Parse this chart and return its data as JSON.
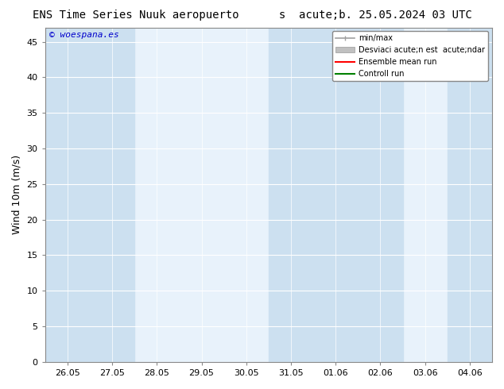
{
  "title": "ENS Time Series Nuuk aeropuerto      s  acute;b. 25.05.2024 03 UTC",
  "ylabel": "Wind 10m (m/s)",
  "watermark": "© woespana.es",
  "x_tick_labels": [
    "26.05",
    "27.05",
    "28.05",
    "29.05",
    "30.05",
    "31.05",
    "01.06",
    "02.06",
    "03.06",
    "04.06"
  ],
  "ylim": [
    0,
    47
  ],
  "yticks": [
    0,
    5,
    10,
    15,
    20,
    25,
    30,
    35,
    40,
    45
  ],
  "background_color": "#ffffff",
  "plot_bg_color": "#e8f2fb",
  "shade_color": "#cce0f0",
  "grid_color": "#ffffff",
  "shade_cols": [
    0,
    1,
    5,
    6,
    7,
    9
  ],
  "non_shade_cols": [
    2,
    3,
    4,
    8
  ],
  "legend_labels": [
    "min/max",
    "Desviaci acute;n est  acute;ndar",
    "Ensemble mean run",
    "Controll run"
  ],
  "legend_colors": [
    "#a0a0a0",
    "#c0c0c0",
    "#ff0000",
    "#008000"
  ],
  "title_fontsize": 10,
  "tick_fontsize": 8,
  "ylabel_fontsize": 9,
  "watermark_fontsize": 8
}
